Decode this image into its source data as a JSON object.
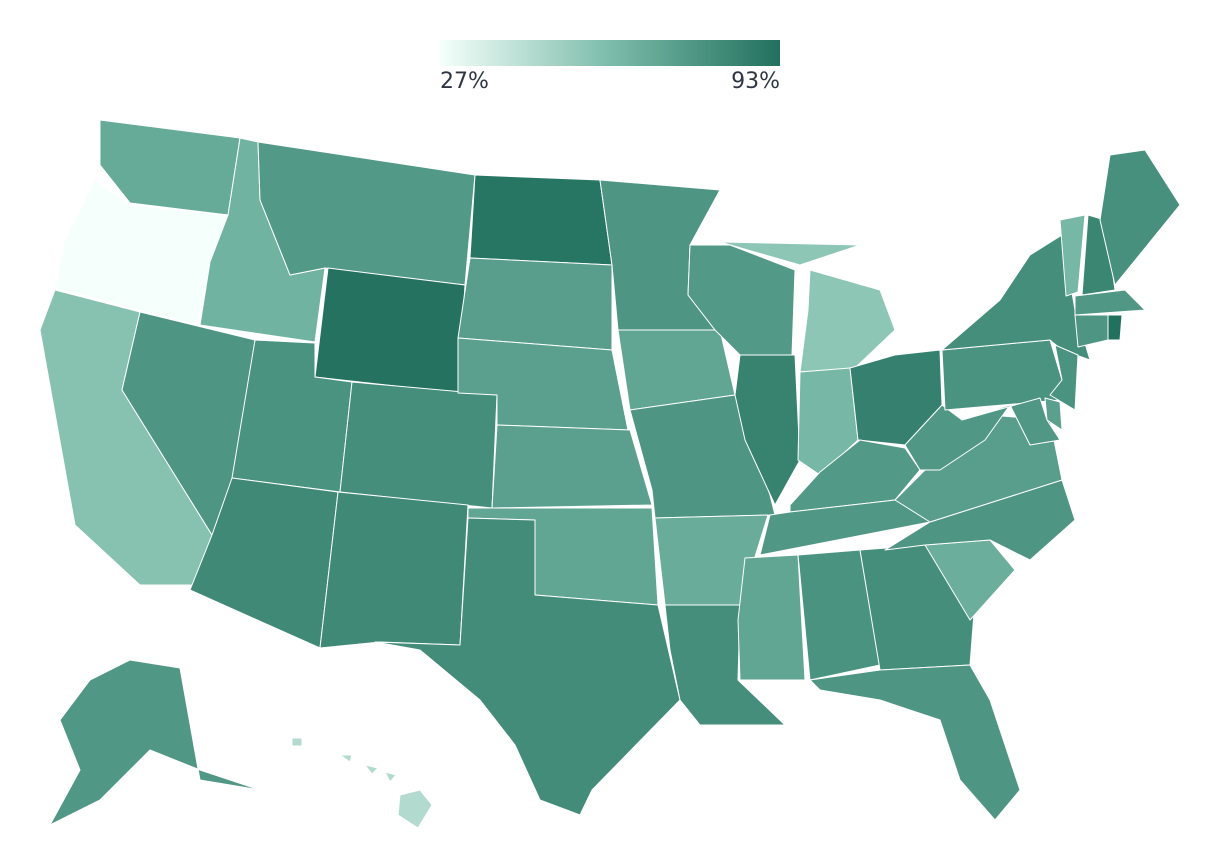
{
  "chart_data": {
    "type": "choropleth",
    "values": [
      68,
      27,
      57,
      64,
      77,
      75,
      92,
      78,
      82,
      80,
      82,
      91,
      73,
      72,
      72,
      70,
      81,
      77,
      70,
      77,
      67,
      80,
      75,
      85,
      55,
      62,
      86,
      75,
      76,
      70,
      78,
      80,
      77,
      66,
      77,
      73,
      76,
      78,
      80,
      62,
      84,
      79,
      76,
      77,
      93,
      78,
      72,
      76,
      76,
      45
    ],
    "colorbar": {
      "lim": [
        27,
        93
      ],
      "ticks": [
        {
          "value": 27,
          "label": "27%"
        },
        {
          "value": 93,
          "label": "93%"
        }
      ],
      "colors": [
        "#f5fffb",
        "#7cbcaa",
        "#22705e"
      ]
    }
  }
}
